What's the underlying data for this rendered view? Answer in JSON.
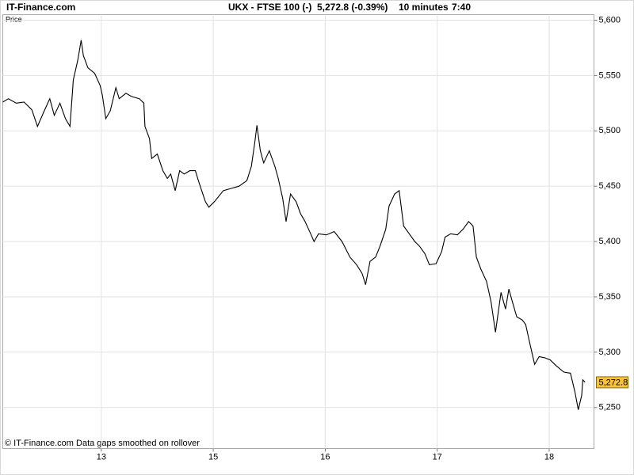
{
  "header": {
    "site": "IT-Finance.com",
    "symbol": "UKX - FTSE 100 (-)",
    "quote": "5,272.8 (-0.39%)",
    "interval": "10 minutes",
    "time": "7:40"
  },
  "chart_data": {
    "type": "line",
    "y_label": "Price",
    "footnote": "© IT-Finance.com  Data gaps smoothed on rollover",
    "series": [
      {
        "name": "UKX",
        "color": "#000000",
        "x": [
          0.12,
          0.17,
          0.24,
          0.31,
          0.38,
          0.43,
          0.49,
          0.54,
          0.58,
          0.63,
          0.68,
          0.72,
          0.75,
          0.79,
          0.82,
          0.84,
          0.88,
          0.94,
          0.99,
          1.01,
          1.04,
          1.08,
          1.13,
          1.16,
          1.22,
          1.27,
          1.34,
          1.38,
          1.39,
          1.43,
          1.45,
          1.5,
          1.55,
          1.59,
          1.62,
          1.66,
          1.7,
          1.74,
          1.79,
          1.84,
          1.87,
          1.93,
          1.96,
          2.01,
          2.09,
          2.16,
          2.23,
          2.3,
          2.34,
          2.37,
          2.39,
          2.42,
          2.45,
          2.5,
          2.55,
          2.58,
          2.62,
          2.65,
          2.69,
          2.74,
          2.78,
          2.82,
          2.87,
          2.9,
          2.94,
          3.01,
          3.08,
          3.15,
          3.22,
          3.28,
          3.33,
          3.36,
          3.4,
          3.45,
          3.49,
          3.54,
          3.57,
          3.62,
          3.66,
          3.7,
          3.75,
          3.8,
          3.84,
          3.89,
          3.93,
          3.99,
          4.04,
          4.07,
          4.12,
          4.18,
          4.23,
          4.28,
          4.32,
          4.35,
          4.39,
          4.44,
          4.48,
          4.52,
          4.57,
          4.61,
          4.64,
          4.67,
          4.71,
          4.76,
          4.79,
          4.82,
          4.87,
          4.91,
          4.96,
          5.01,
          5.06,
          5.13,
          5.19,
          5.23,
          5.26,
          5.29,
          5.3,
          5.32
        ],
        "values": [
          5526,
          5529,
          5525,
          5526,
          5519,
          5504,
          5518,
          5529,
          5514,
          5525,
          5511,
          5504,
          5546,
          5564,
          5582,
          5568,
          5557,
          5552,
          5541,
          5532,
          5511,
          5518,
          5539,
          5529,
          5534,
          5531,
          5529,
          5525,
          5504,
          5493,
          5475,
          5479,
          5464,
          5457,
          5461,
          5446,
          5464,
          5461,
          5464,
          5464,
          5454,
          5436,
          5431,
          5436,
          5446,
          5448,
          5450,
          5455,
          5468,
          5489,
          5505,
          5482,
          5471,
          5482,
          5468,
          5457,
          5439,
          5418,
          5443,
          5436,
          5425,
          5418,
          5407,
          5400,
          5407,
          5406,
          5409,
          5400,
          5386,
          5379,
          5371,
          5361,
          5382,
          5386,
          5396,
          5411,
          5432,
          5443,
          5446,
          5414,
          5407,
          5400,
          5396,
          5389,
          5379,
          5380,
          5391,
          5404,
          5407,
          5406,
          5411,
          5418,
          5414,
          5386,
          5375,
          5364,
          5346,
          5318,
          5354,
          5339,
          5357,
          5346,
          5332,
          5329,
          5325,
          5311,
          5289,
          5296,
          5295,
          5293,
          5288,
          5282,
          5281,
          5264,
          5248,
          5261,
          5275,
          5272.8
        ]
      }
    ],
    "last_value": {
      "value": 5272.8,
      "label": "5,272.8"
    },
    "xlim": [
      0.12,
      5.4
    ],
    "xticks": [
      {
        "value": 1,
        "label": "13"
      },
      {
        "value": 2,
        "label": "15"
      },
      {
        "value": 3,
        "label": "16"
      },
      {
        "value": 4,
        "label": "17"
      },
      {
        "value": 5,
        "label": "18"
      }
    ],
    "ylim": [
      5213,
      5605
    ],
    "yticks": [
      {
        "value": 5250,
        "label": "5,250"
      },
      {
        "value": 5300,
        "label": "5,300"
      },
      {
        "value": 5350,
        "label": "5,350"
      },
      {
        "value": 5400,
        "label": "5,400"
      },
      {
        "value": 5450,
        "label": "5,450"
      },
      {
        "value": 5500,
        "label": "5,500"
      },
      {
        "value": 5550,
        "label": "5,550"
      },
      {
        "value": 5600,
        "label": "5,600"
      }
    ],
    "grid": true,
    "last_value_color": "#f7c33c"
  }
}
